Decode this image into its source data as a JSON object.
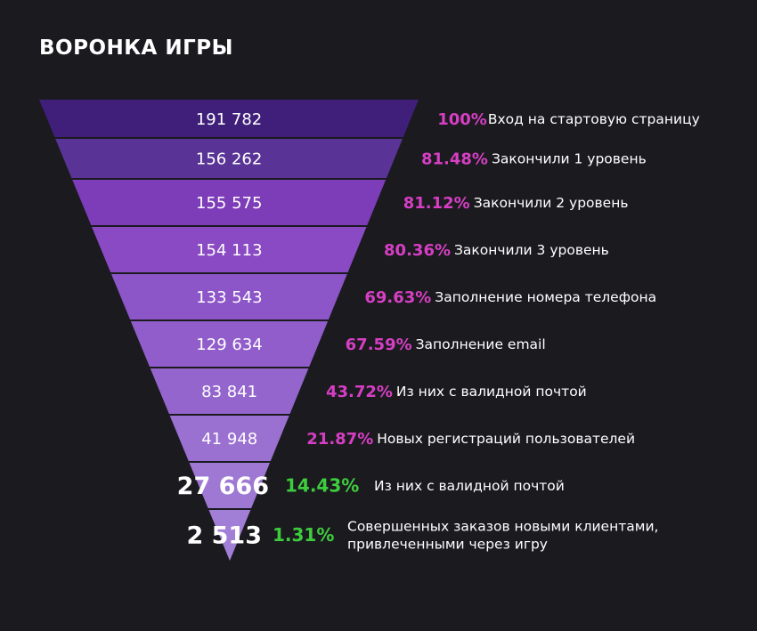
{
  "title": "ВОРОНКА ИГРЫ",
  "chart_data": {
    "type": "funnel",
    "title": "ВОРОНКА ИГРЫ",
    "stages": [
      {
        "value": 191782,
        "value_label": "191 782",
        "percent_label": "100%",
        "label": "Вход на стартовую страницу",
        "color": "#3f1f7a",
        "percent_color": "#d63fc4"
      },
      {
        "value": 156262,
        "value_label": "156 262",
        "percent_label": "81.48%",
        "label": "Закончили 1 уровень",
        "color": "#593496",
        "percent_color": "#d63fc4"
      },
      {
        "value": 155575,
        "value_label": "155 575",
        "percent_label": "81.12%",
        "label": "Закончили 2 уровень",
        "color": "#7d3cb8",
        "percent_color": "#d63fc4"
      },
      {
        "value": 154113,
        "value_label": "154 113",
        "percent_label": "80.36%",
        "label": "Закончили 3 уровень",
        "color": "#8a4ac4",
        "percent_color": "#d63fc4"
      },
      {
        "value": 133543,
        "value_label": "133 543",
        "percent_label": "69.63%",
        "label": "Заполнение номера телефона",
        "color": "#8c55c8",
        "percent_color": "#d63fc4"
      },
      {
        "value": 129634,
        "value_label": "129 634",
        "percent_label": "67.59%",
        "label": "Заполнение email",
        "color": "#905dcb",
        "percent_color": "#d63fc4"
      },
      {
        "value": 83841,
        "value_label": "83 841",
        "percent_label": "43.72%",
        "label": "Из них с валидной почтой",
        "color": "#9466cd",
        "percent_color": "#d63fc4"
      },
      {
        "value": 41948,
        "value_label": "41 948",
        "percent_label": "21.87%",
        "label": "Новых регистраций пользователей",
        "color": "#9a70d1",
        "percent_color": "#d63fc4"
      },
      {
        "value": 27666,
        "value_label": "27 666",
        "percent_label": "14.43%",
        "label": "Из них с валидной почтой",
        "color": "#9e78d2",
        "percent_color": "#3dcc3d"
      },
      {
        "value": 2513,
        "value_label": "2 513",
        "percent_label": "1.31%",
        "label": "Совершенных заказов новыми клиентами,\nпривлеченными через игру",
        "color": "#a27fd6",
        "percent_color": "#3dcc3d"
      }
    ]
  }
}
